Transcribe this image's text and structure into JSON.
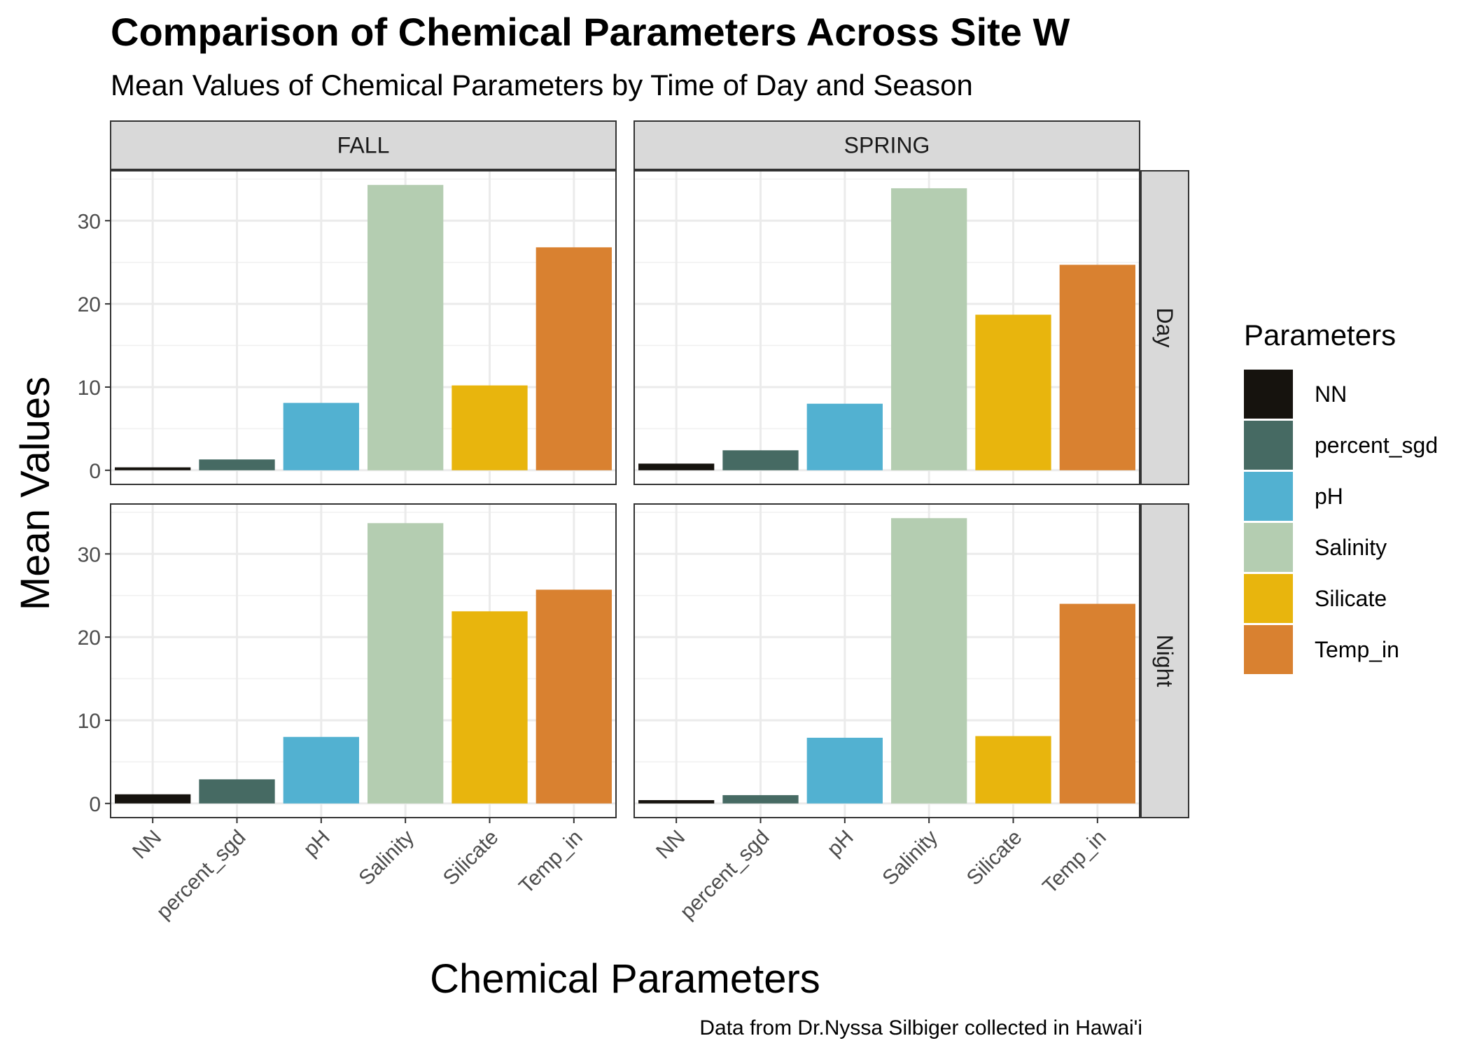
{
  "chart_data": {
    "type": "bar",
    "title": "Comparison of Chemical Parameters Across Site W",
    "subtitle": "Mean Values of Chemical Parameters by Time of Day and Season",
    "xlabel": "Chemical Parameters",
    "ylabel": "Mean Values",
    "caption": "Data from Dr.Nyssa Silbiger collected in Hawai'i",
    "categories": [
      "NN",
      "percent_sgd",
      "pH",
      "Salinity",
      "Silicate",
      "Temp_in"
    ],
    "colors": [
      "#16130e",
      "#466a63",
      "#52b1d1",
      "#b4cdb1",
      "#e8b50d",
      "#d98130"
    ],
    "yticks": [
      0,
      10,
      20,
      30
    ],
    "ylim": [
      -1.7,
      36.0
    ],
    "grid": true,
    "legend": {
      "title": "Parameters",
      "position": "right",
      "items": [
        "NN",
        "percent_sgd",
        "pH",
        "Salinity",
        "Silicate",
        "Temp_in"
      ]
    },
    "columns": [
      "FALL",
      "SPRING"
    ],
    "rows": [
      "Day",
      "Night"
    ],
    "panels": [
      {
        "column": "FALL",
        "row": "Day",
        "values": [
          0.35,
          1.3,
          8.1,
          34.3,
          10.2,
          26.8
        ]
      },
      {
        "column": "SPRING",
        "row": "Day",
        "values": [
          0.8,
          2.4,
          8.0,
          33.9,
          18.7,
          24.7
        ]
      },
      {
        "column": "FALL",
        "row": "Night",
        "values": [
          1.1,
          2.9,
          8.0,
          33.7,
          23.1,
          25.7
        ]
      },
      {
        "column": "SPRING",
        "row": "Night",
        "values": [
          0.4,
          1.0,
          7.9,
          34.3,
          8.1,
          24.0
        ]
      }
    ]
  }
}
